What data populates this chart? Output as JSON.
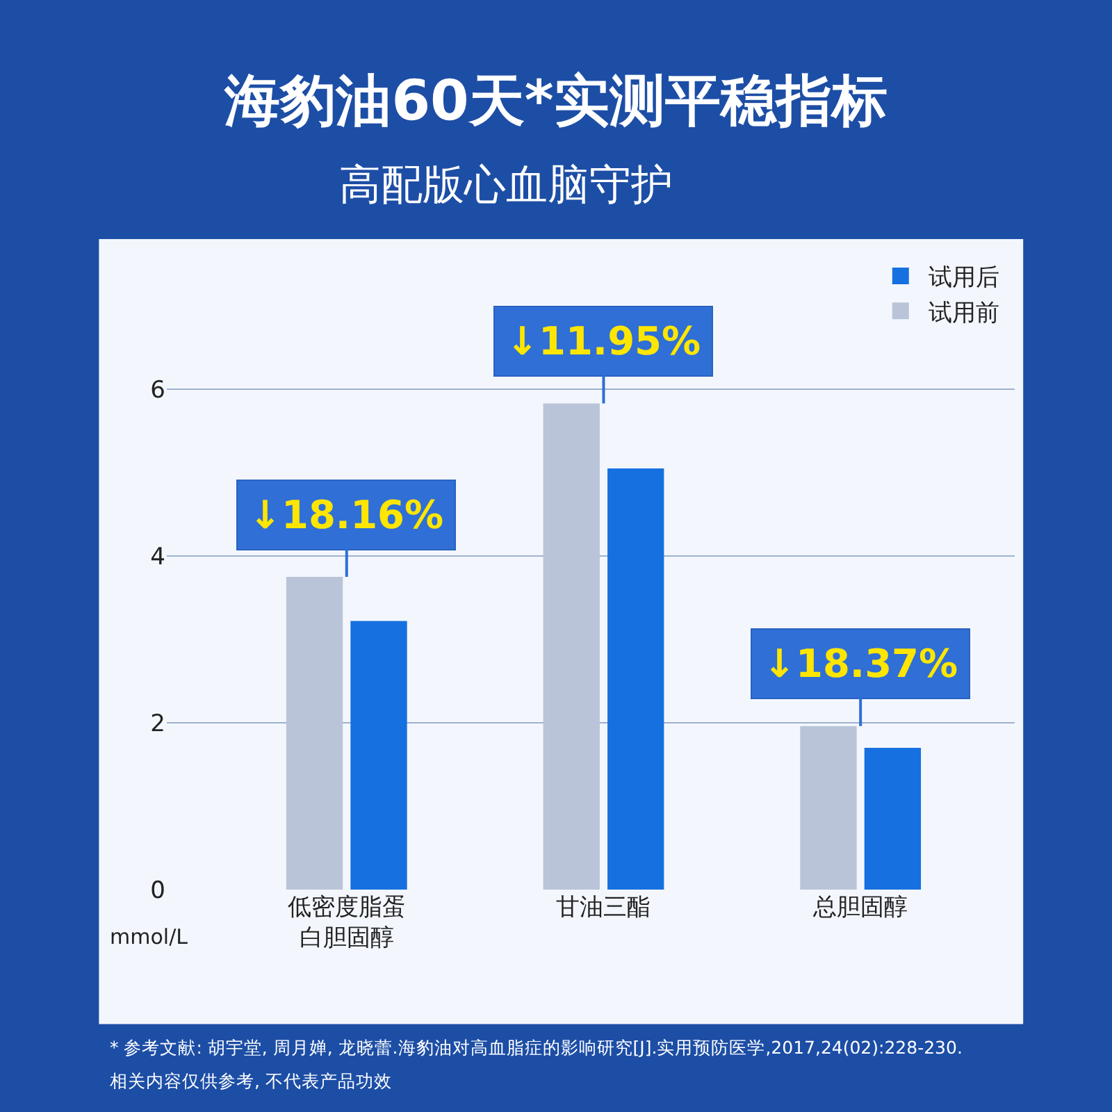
{
  "chart_data": {
    "type": "bar",
    "title": "海豹油60天*实测平稳指标",
    "subtitle": "高配版心血脑守护",
    "ylabel": "mmol/L",
    "categories": [
      "低密度脂蛋白胆固醇",
      "甘油三酯",
      "总胆固醇"
    ],
    "series": [
      {
        "name": "试用前",
        "color": "#b9c4d8",
        "values": [
          3.75,
          5.83,
          1.96
        ]
      },
      {
        "name": "试用后",
        "color": "#1670e0",
        "values": [
          3.22,
          5.05,
          1.7
        ]
      }
    ],
    "ylim": [
      0,
      7.5
    ],
    "yticks": [
      0,
      2,
      4,
      6
    ],
    "grid": "y",
    "legend": "top right",
    "annotations": [
      {
        "text": "↓18.16%",
        "x": "低密度脂蛋白胆固醇",
        "y": 3.75
      },
      {
        "text": "↓11.95%",
        "x": "甘油三酯",
        "y": 5.83
      },
      {
        "text": "↓18.37%",
        "x": "总胆固醇",
        "y": 1.96
      },
      "* 参考文献: 胡宇堂, 周月婵, 龙晓蕾.海豹油对高血脂症的影响研究[J].实用预防医学,2017,24(02):228-230.",
      "相关内容仅供参考, 不代表产品功效"
    ]
  }
}
